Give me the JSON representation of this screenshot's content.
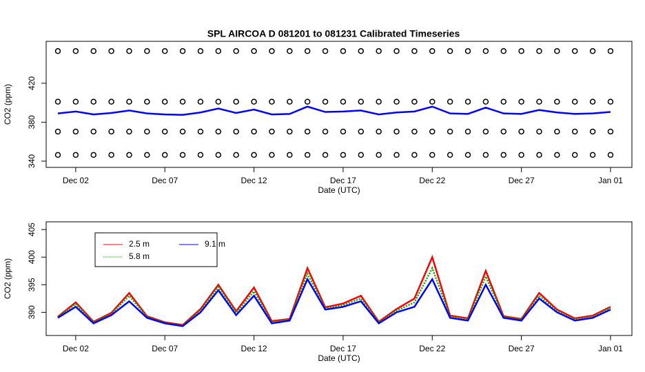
{
  "chart_data": [
    {
      "type": "line",
      "title": "SPL   AIRCOA  D    081201  to  081231   Calibrated Timeseries",
      "x_label": "Date (UTC)",
      "y_label": "CO2 (ppm)",
      "categories": [
        "Dec 01",
        "Dec 02",
        "Dec 03",
        "Dec 04",
        "Dec 05",
        "Dec 06",
        "Dec 07",
        "Dec 08",
        "Dec 09",
        "Dec 10",
        "Dec 11",
        "Dec 12",
        "Dec 13",
        "Dec 14",
        "Dec 15",
        "Dec 16",
        "Dec 17",
        "Dec 18",
        "Dec 19",
        "Dec 20",
        "Dec 21",
        "Dec 22",
        "Dec 23",
        "Dec 24",
        "Dec 25",
        "Dec 26",
        "Dec 27",
        "Dec 28",
        "Dec 29",
        "Dec 30",
        "Dec 31",
        "Jan 01"
      ],
      "ylim": [
        333.6,
        463
      ],
      "yticks": [
        340,
        380,
        420
      ],
      "series": [
        {
          "color": "#000000",
          "style": "points",
          "values": [
            453,
            453,
            453,
            453,
            453,
            453,
            453,
            453,
            453,
            453,
            453,
            453,
            453,
            453,
            453,
            453,
            453,
            453,
            453,
            453,
            453,
            453,
            453,
            453,
            453,
            453,
            453,
            453,
            453,
            453,
            453,
            453
          ]
        },
        {
          "color": "#000000",
          "style": "points",
          "values": [
            401,
            401,
            401,
            401,
            401,
            401,
            401,
            401,
            401,
            401,
            401,
            401,
            401,
            401,
            401,
            401,
            401,
            401,
            401,
            401,
            401,
            401,
            401,
            401,
            401,
            401,
            401,
            401,
            401,
            401,
            401,
            401
          ]
        },
        {
          "color": "#000000",
          "style": "points",
          "values": [
            370.4,
            370.4,
            370.4,
            370.4,
            370.4,
            370.4,
            370.4,
            370.4,
            370.4,
            370.4,
            370.4,
            370.4,
            370.4,
            370.4,
            370.4,
            370.4,
            370.4,
            370.4,
            370.4,
            370.4,
            370.4,
            370.4,
            370.4,
            370.4,
            370.4,
            370.4,
            370.4,
            370.4,
            370.4,
            370.4,
            370.4,
            370.4
          ]
        },
        {
          "color": "#000000",
          "style": "points",
          "values": [
            346.4,
            346.4,
            346.4,
            346.4,
            346.4,
            346.4,
            346.4,
            346.4,
            346.4,
            346.4,
            346.4,
            346.4,
            346.4,
            346.4,
            346.4,
            346.4,
            346.4,
            346.4,
            346.4,
            346.4,
            346.4,
            346.4,
            346.4,
            346.4,
            346.4,
            346.4,
            346.4,
            346.4,
            346.4,
            346.4,
            346.4,
            346.4
          ]
        },
        {
          "color": "#0000ff",
          "style": "line",
          "values": [
            389,
            391,
            388,
            389.5,
            392,
            389,
            388,
            387.5,
            390,
            394,
            389.5,
            393,
            388,
            388.5,
            396,
            390.5,
            391,
            392,
            388,
            390,
            391,
            396,
            389,
            388.5,
            395,
            389,
            388.5,
            392.5,
            390,
            388.5,
            389,
            390.5
          ]
        }
      ]
    },
    {
      "type": "line",
      "x_label": "Date (UTC)",
      "y_label": "CO2 (ppm)",
      "categories": [
        "Dec 01",
        "Dec 02",
        "Dec 03",
        "Dec 04",
        "Dec 05",
        "Dec 06",
        "Dec 07",
        "Dec 08",
        "Dec 09",
        "Dec 10",
        "Dec 11",
        "Dec 12",
        "Dec 13",
        "Dec 14",
        "Dec 15",
        "Dec 16",
        "Dec 17",
        "Dec 18",
        "Dec 19",
        "Dec 20",
        "Dec 21",
        "Dec 22",
        "Dec 23",
        "Dec 24",
        "Dec 25",
        "Dec 26",
        "Dec 27",
        "Dec 28",
        "Dec 29",
        "Dec 30",
        "Dec 31",
        "Jan 01"
      ],
      "ylim": [
        385.8,
        406.4
      ],
      "yticks": [
        390,
        395,
        400,
        405
      ],
      "legend": "topleft",
      "series": [
        {
          "name": "2.5 m",
          "color": "#ff0000",
          "style": "line",
          "values": [
            389.2,
            391.8,
            388.3,
            389.9,
            393.5,
            389.3,
            388.2,
            387.7,
            390.6,
            395,
            390.2,
            394.5,
            388.4,
            388.8,
            398,
            390.9,
            391.6,
            393,
            388.3,
            390.6,
            392.5,
            400,
            389.4,
            388.9,
            397.5,
            389.3,
            388.8,
            393.5,
            390.5,
            388.9,
            389.4,
            391
          ]
        },
        {
          "name": "5.8 m",
          "color": "#00aa00",
          "style": "line",
          "linestyle": "dotted",
          "values": [
            389.1,
            391.5,
            388.2,
            389.7,
            393,
            389.2,
            388.1,
            387.6,
            390.3,
            394.6,
            389.9,
            393.8,
            388.2,
            388.7,
            397,
            390.7,
            391.3,
            392.5,
            388.2,
            390.3,
            391.8,
            398,
            389.2,
            388.7,
            396.5,
            389.2,
            388.7,
            393,
            390.2,
            388.7,
            389.2,
            390.8
          ]
        },
        {
          "name": "9.1 m",
          "color": "#0000ff",
          "style": "line",
          "values": [
            389,
            391,
            388,
            389.5,
            392,
            389,
            388,
            387.5,
            390,
            394,
            389.5,
            393,
            388,
            388.5,
            396,
            390.5,
            391,
            392,
            388,
            390,
            391,
            396,
            389,
            388.5,
            395,
            389,
            388.5,
            392.5,
            390,
            388.5,
            389,
            390.5
          ]
        }
      ]
    }
  ]
}
